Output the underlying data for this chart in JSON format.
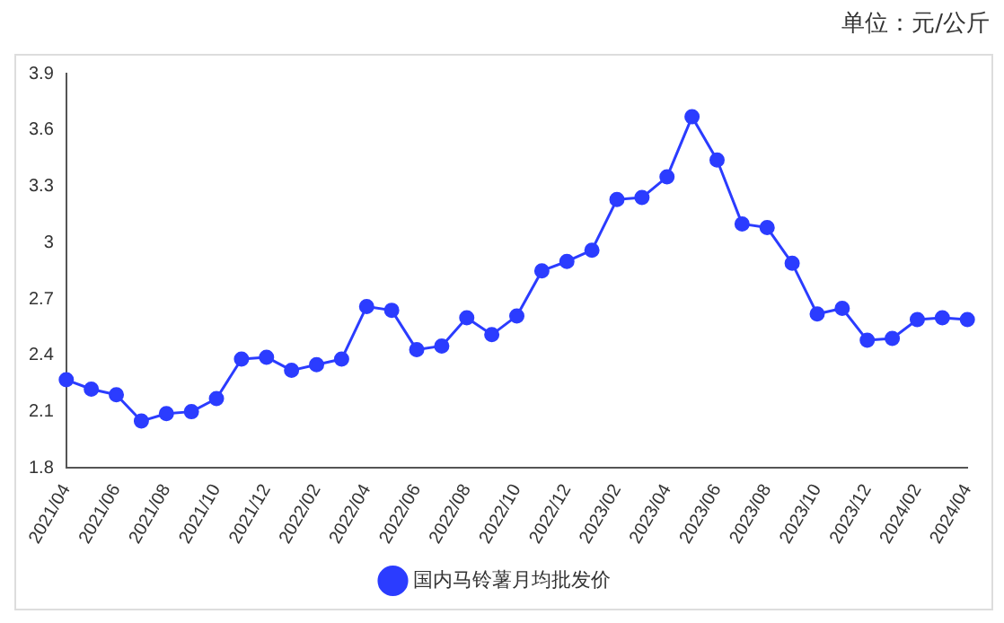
{
  "chart_data": {
    "type": "line",
    "annotations": [
      "单位：元/公斤"
    ],
    "categories": [
      "2021/04",
      null,
      "2021/06",
      null,
      "2021/08",
      null,
      "2021/10",
      null,
      "2021/12",
      null,
      "2022/02",
      null,
      "2022/04",
      null,
      "2022/06",
      null,
      "2022/08",
      null,
      "2022/10",
      null,
      "2022/12",
      null,
      "2023/02",
      null,
      "2023/04",
      null,
      "2023/06",
      null,
      "2023/08",
      null,
      "2023/10",
      null,
      "2023/12",
      null,
      "2024/02",
      null,
      "2024/04"
    ],
    "series": [
      {
        "name": "国内马铃薯月均批发价",
        "color": "#2b3cff",
        "values": [
          2.27,
          2.22,
          2.19,
          2.05,
          2.09,
          2.1,
          2.17,
          2.38,
          2.39,
          2.32,
          2.35,
          2.38,
          2.66,
          2.64,
          2.43,
          2.45,
          2.6,
          2.51,
          2.61,
          2.85,
          2.9,
          2.96,
          3.23,
          3.24,
          3.35,
          3.67,
          3.44,
          3.1,
          3.08,
          2.89,
          2.62,
          2.65,
          2.48,
          2.49,
          2.59,
          2.6,
          2.59
        ]
      }
    ],
    "ylim": [
      1.8,
      3.9
    ],
    "yticks": [
      1.8,
      2.1,
      2.4,
      2.7,
      3,
      3.3,
      3.6,
      3.9
    ],
    "grid": false,
    "legend": "bottom",
    "marker": "circle",
    "line_style": "solid"
  }
}
